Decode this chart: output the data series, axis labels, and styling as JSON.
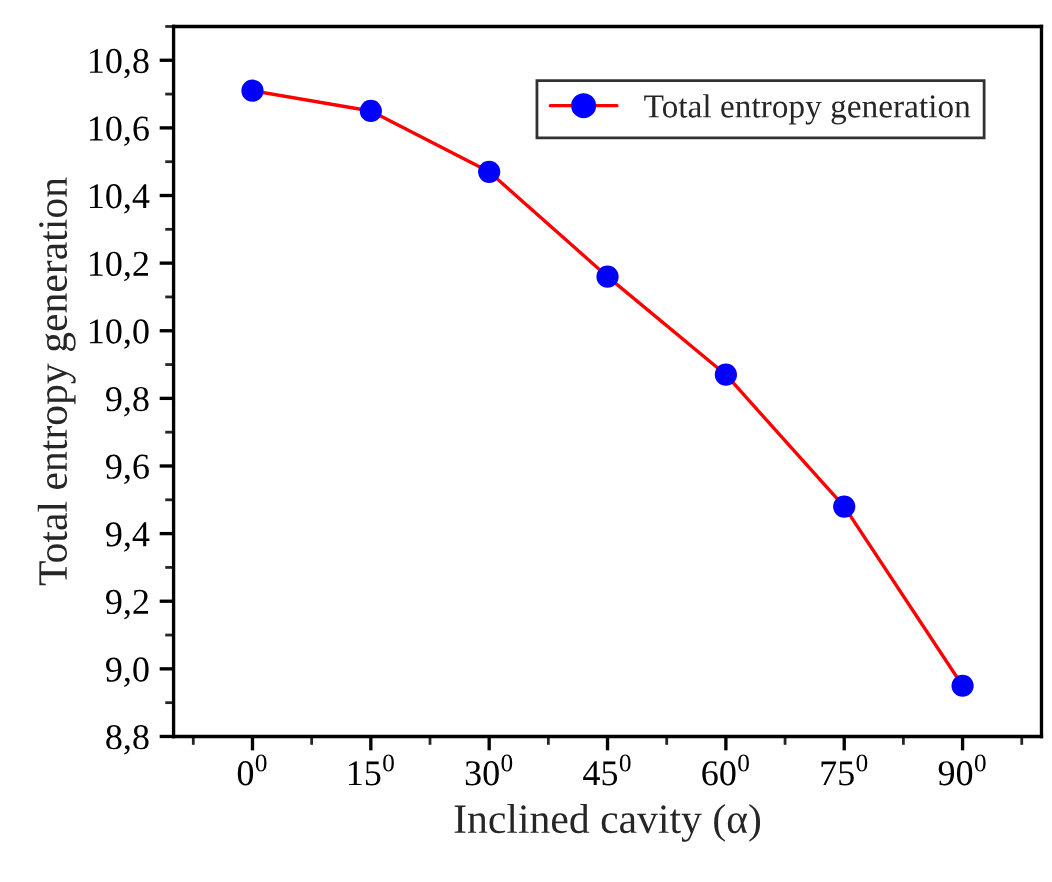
{
  "chart_data": {
    "type": "line",
    "xlabel": "Inclined cavity (α)",
    "ylabel": "Total entropy generation",
    "categories": [
      "0$^{0}$",
      "15$^{0}$",
      "30$^{0}$",
      "45$^{0}$",
      "60$^{0}$",
      "75$^{0}$",
      "90$^{0}$"
    ],
    "series": [
      {
        "name": "Total entropy generation",
        "color": "#ff0000",
        "colors": [
          "#0000ff",
          "#0000ff",
          "#0000ff",
          "#0000ff",
          "#0000ff",
          "#0000ff",
          "#0000ff"
        ],
        "values": [
          10.71,
          10.65,
          10.47,
          10.16,
          9.87,
          9.48,
          8.95
        ]
      }
    ],
    "ylim": [
      8.8,
      10.9
    ],
    "yticks": [
      {
        "value": 8.8,
        "label": "8,8"
      },
      {
        "value": 9.0,
        "label": "9,0"
      },
      {
        "value": 9.2,
        "label": "9,2"
      },
      {
        "value": 9.4,
        "label": "9,4"
      },
      {
        "value": 9.6,
        "label": "9,6"
      },
      {
        "value": 9.8,
        "label": "9,8"
      },
      {
        "value": 10.0,
        "label": "10,0"
      },
      {
        "value": 10.2,
        "label": "10,2"
      },
      {
        "value": 10.4,
        "label": "10,4"
      },
      {
        "value": 10.6,
        "label": "10,6"
      },
      {
        "value": 10.8,
        "label": "10,8"
      }
    ],
    "marker": "circle",
    "line_style": "solid",
    "legend": "top right",
    "grid": false
  }
}
